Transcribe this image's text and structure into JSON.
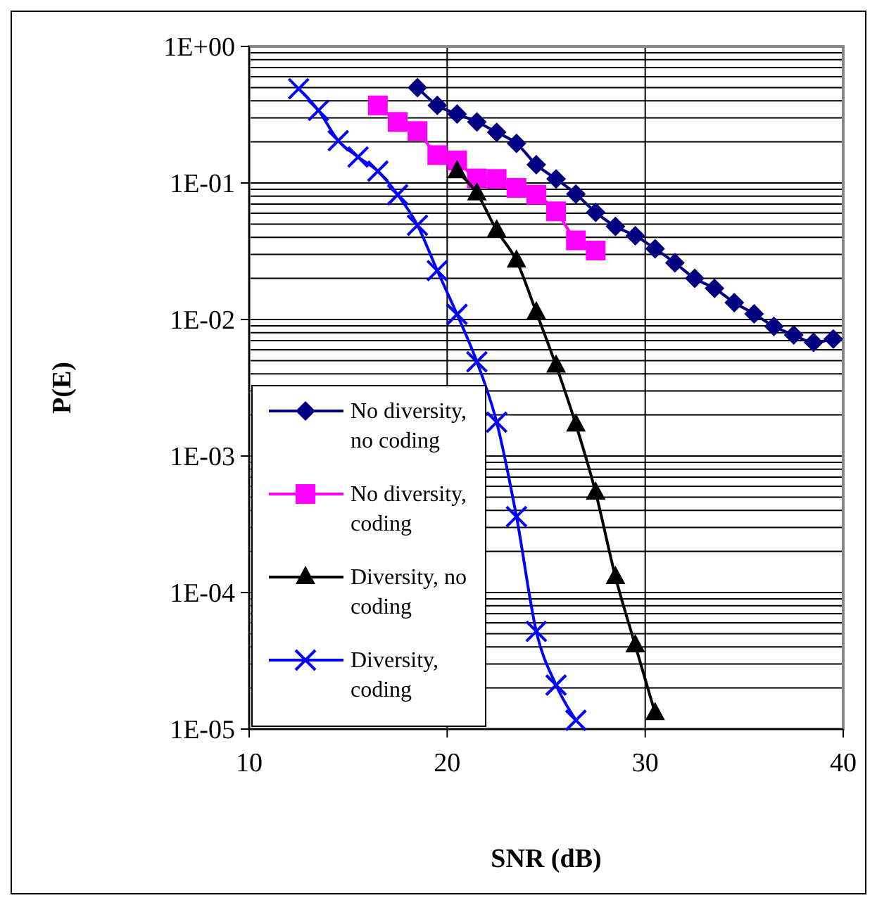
{
  "chart_data": {
    "type": "line",
    "xlabel": "SNR (dB)",
    "ylabel": "P(E)",
    "log": "y",
    "grid": true,
    "legend": "bottom left",
    "xlim": [
      10,
      40
    ],
    "xticks": [
      10,
      20,
      30,
      40
    ],
    "ylim": [
      1e-05,
      1
    ],
    "yticks": [
      {
        "value": 1,
        "label": "1E+00"
      },
      {
        "value": 0.1,
        "label": "1E-01"
      },
      {
        "value": 0.01,
        "label": "1E-02"
      },
      {
        "value": 0.001,
        "label": "1E-03"
      },
      {
        "value": 0.0001,
        "label": "1E-04"
      },
      {
        "value": 1e-05,
        "label": "1E-05"
      }
    ],
    "series": [
      {
        "name": "No diversity, no coding",
        "color": "#000080",
        "marker": "diamond",
        "x": [
          18.5,
          19.5,
          20.5,
          21.5,
          22.5,
          23.5,
          24.5,
          25.5,
          26.5,
          27.5,
          28.5,
          29.5,
          30.5,
          31.5,
          32.5,
          33.5,
          34.5,
          35.5,
          36.5,
          37.5,
          38.5,
          39.5
        ],
        "values": [
          0.5,
          0.37,
          0.32,
          0.28,
          0.235,
          0.195,
          0.136,
          0.107,
          0.083,
          0.061,
          0.048,
          0.041,
          0.033,
          0.026,
          0.02,
          0.0169,
          0.0133,
          0.011,
          0.0089,
          0.0077,
          0.0068,
          0.0072
        ]
      },
      {
        "name": "No diversity, coding",
        "color": "#ff00ff",
        "marker": "square",
        "x": [
          16.5,
          17.5,
          18.5,
          19.5,
          20.5,
          21.5,
          22.5,
          23.5,
          24.5,
          25.5,
          26.5,
          27.5
        ],
        "values": [
          0.37,
          0.28,
          0.24,
          0.16,
          0.146,
          0.108,
          0.107,
          0.092,
          0.082,
          0.062,
          0.038,
          0.032
        ]
      },
      {
        "name": "Diversity, no coding",
        "color": "#000000",
        "marker": "triangle",
        "x": [
          20.5,
          21.5,
          22.5,
          23.5,
          24.5,
          25.5,
          26.5,
          27.5,
          28.5,
          29.5,
          30.5
        ],
        "values": [
          0.122,
          0.084,
          0.045,
          0.027,
          0.0113,
          0.0046,
          0.0017,
          0.00054,
          0.00013,
          4.1e-05,
          1.31e-05
        ]
      },
      {
        "name": "Diversity, coding",
        "color": "#0000ff",
        "marker": "cross",
        "x": [
          12.5,
          13.5,
          14.5,
          15.5,
          16.5,
          17.5,
          18.5,
          19.5,
          20.5,
          21.5,
          22.5,
          23.5,
          24.5,
          25.5,
          26.5
        ],
        "values": [
          0.49,
          0.34,
          0.204,
          0.155,
          0.122,
          0.082,
          0.049,
          0.0228,
          0.0109,
          0.0049,
          0.00177,
          0.00036,
          5.2e-05,
          2.1e-05,
          1.16e-05
        ]
      }
    ]
  }
}
